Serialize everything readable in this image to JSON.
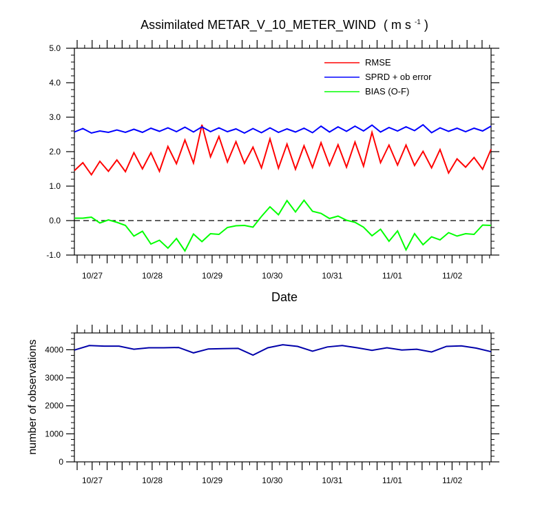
{
  "chart_data": [
    {
      "type": "line",
      "title": "Assimilated METAR_V_10_METER_WIND",
      "title_units": "( m s",
      "title_units_sup": "-1",
      "title_units_close": " )",
      "xlabel": "Date",
      "ylabel": "",
      "ylim": [
        -1.0,
        5.0
      ],
      "yticks": [
        "-1.0",
        "0.0",
        "1.0",
        "2.0",
        "3.0",
        "4.0",
        "5.0"
      ],
      "xticklabels": [
        "10/27",
        "10/28",
        "10/29",
        "10/30",
        "10/31",
        "11/01",
        "11/02"
      ],
      "zero_line": "dashed",
      "legend_position": "top-right",
      "series": [
        {
          "name": "RMSE",
          "color": "#ff0000",
          "values": [
            1.45,
            1.68,
            1.33,
            1.72,
            1.43,
            1.76,
            1.42,
            1.97,
            1.5,
            1.97,
            1.43,
            2.15,
            1.65,
            2.34,
            1.67,
            2.78,
            1.85,
            2.44,
            1.7,
            2.29,
            1.66,
            2.13,
            1.53,
            2.37,
            1.52,
            2.22,
            1.49,
            2.17,
            1.54,
            2.26,
            1.6,
            2.2,
            1.55,
            2.28,
            1.58,
            2.56,
            1.68,
            2.19,
            1.61,
            2.19,
            1.6,
            2.01,
            1.53,
            2.06,
            1.38,
            1.79,
            1.55,
            1.83,
            1.49,
            2.07
          ]
        },
        {
          "name": "SPRD + ob error",
          "color": "#0000ff",
          "values": [
            2.57,
            2.67,
            2.54,
            2.6,
            2.56,
            2.63,
            2.56,
            2.65,
            2.56,
            2.68,
            2.59,
            2.69,
            2.58,
            2.71,
            2.57,
            2.72,
            2.58,
            2.69,
            2.58,
            2.66,
            2.54,
            2.67,
            2.55,
            2.69,
            2.56,
            2.66,
            2.57,
            2.68,
            2.55,
            2.74,
            2.57,
            2.72,
            2.59,
            2.74,
            2.6,
            2.77,
            2.57,
            2.7,
            2.6,
            2.72,
            2.61,
            2.78,
            2.55,
            2.69,
            2.59,
            2.68,
            2.58,
            2.68,
            2.6,
            2.74
          ]
        },
        {
          "name": "BIAS (O-F)",
          "color": "#00ff00",
          "values": [
            0.07,
            0.07,
            0.1,
            -0.07,
            0.02,
            -0.05,
            -0.14,
            -0.45,
            -0.31,
            -0.68,
            -0.57,
            -0.8,
            -0.52,
            -0.88,
            -0.39,
            -0.61,
            -0.38,
            -0.4,
            -0.2,
            -0.15,
            -0.14,
            -0.19,
            0.12,
            0.4,
            0.17,
            0.58,
            0.25,
            0.59,
            0.27,
            0.21,
            0.06,
            0.13,
            0.01,
            -0.05,
            -0.19,
            -0.44,
            -0.25,
            -0.6,
            -0.3,
            -0.85,
            -0.38,
            -0.7,
            -0.47,
            -0.56,
            -0.35,
            -0.45,
            -0.38,
            -0.4,
            -0.13,
            -0.14
          ]
        }
      ]
    },
    {
      "type": "line",
      "title": "",
      "xlabel": "",
      "ylabel": "number of observations",
      "ylim": [
        0,
        4600
      ],
      "yticks": [
        "0",
        "1000",
        "2000",
        "3000",
        "4000"
      ],
      "xticklabels": [
        "10/27",
        "10/28",
        "10/29",
        "10/30",
        "10/31",
        "11/01",
        "11/02"
      ],
      "series": [
        {
          "name": "",
          "color": "#0000aa",
          "values": [
            3990,
            4150,
            4130,
            4130,
            4020,
            4070,
            4070,
            4080,
            3890,
            4030,
            4040,
            4050,
            3810,
            4070,
            4180,
            4120,
            3950,
            4100,
            4150,
            4070,
            3980,
            4070,
            3990,
            4020,
            3920,
            4120,
            4140,
            4060,
            3930
          ]
        }
      ]
    }
  ]
}
